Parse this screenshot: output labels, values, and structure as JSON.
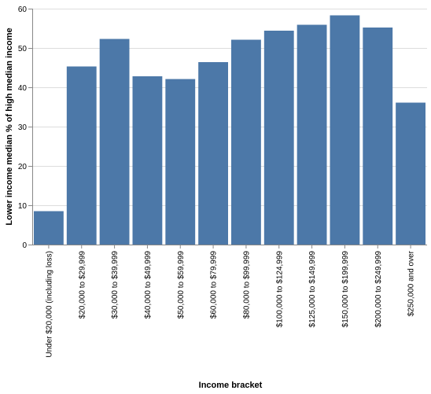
{
  "chart_data": {
    "type": "bar",
    "xlabel": "Income bracket",
    "ylabel": "Lower income median % of high median income",
    "ylim": [
      0,
      60
    ],
    "yticks": [
      0,
      10,
      20,
      30,
      40,
      50,
      60
    ],
    "grid": true,
    "bar_color": "#4c78a8",
    "categories": [
      "Under $20,000 (including loss)",
      "$20,000 to $29,999",
      "$30,000 to $39,999",
      "$40,000 to $49,999",
      "$50,000 to $59,999",
      "$60,000 to $79,999",
      "$80,000 to $99,999",
      "$100,000 to $124,999",
      "$125,000 to $149,999",
      "$150,000 to $199,999",
      "$200,000 to $249,999",
      "$250,000 and over"
    ],
    "values": [
      8.5,
      45.3,
      52.3,
      42.8,
      42.1,
      46.4,
      52.1,
      54.4,
      55.9,
      58.3,
      55.2,
      36.1
    ]
  }
}
